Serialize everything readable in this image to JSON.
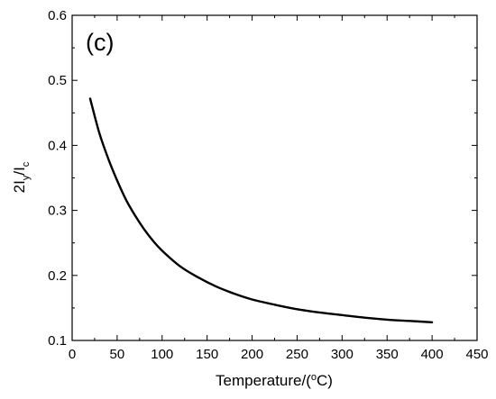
{
  "chart_data": {
    "type": "line",
    "panel_label": "(c)",
    "xlabel": {
      "main": "Temperature/(",
      "sup": "o",
      "unit": "C)"
    },
    "ylabel": {
      "p1": "2I",
      "sub1": "y",
      "p2": "/I",
      "sub2": "c"
    },
    "xlim": [
      0,
      450
    ],
    "ylim": [
      0.1,
      0.6
    ],
    "x_ticks": [
      "0",
      "50",
      "100",
      "150",
      "200",
      "250",
      "300",
      "350",
      "400",
      "450"
    ],
    "y_ticks": [
      "0.1",
      "0.2",
      "0.3",
      "0.4",
      "0.5",
      "0.6"
    ],
    "grid": false,
    "series": [
      {
        "color": "#000000",
        "x": [
          20,
          30,
          40,
          50,
          60,
          70,
          80,
          90,
          100,
          120,
          140,
          160,
          180,
          200,
          225,
          250,
          275,
          300,
          325,
          350,
          375,
          400
        ],
        "y": [
          0.472,
          0.42,
          0.38,
          0.346,
          0.316,
          0.292,
          0.271,
          0.253,
          0.238,
          0.214,
          0.197,
          0.183,
          0.172,
          0.163,
          0.155,
          0.148,
          0.143,
          0.139,
          0.135,
          0.132,
          0.13,
          0.128
        ]
      }
    ]
  }
}
